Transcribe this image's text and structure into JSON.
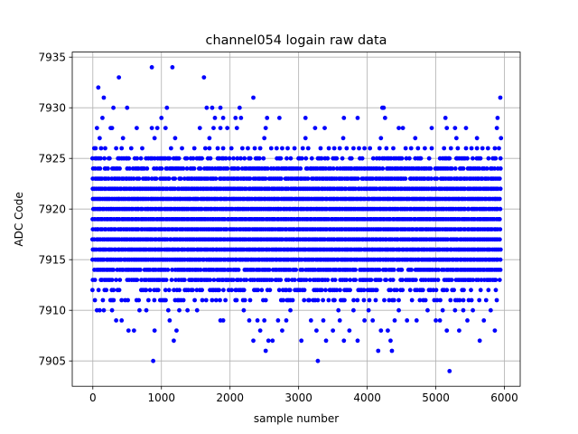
{
  "chart_data": {
    "type": "scatter",
    "title": "channel054 logain raw data",
    "xlabel": "sample number",
    "ylabel": "ADC Code",
    "xlim": [
      -300,
      6230
    ],
    "ylim": [
      7902.5,
      7935.5
    ],
    "xticks": [
      0,
      1000,
      2000,
      3000,
      4000,
      5000,
      6000
    ],
    "yticks": [
      7905,
      7910,
      7915,
      7920,
      7925,
      7930,
      7935
    ],
    "grid": true,
    "marker_color": "#0000ff",
    "series": [
      {
        "values_summary": "dense integer ADC codes 7911-7925 across samples 0-5950, with sparse outliers",
        "bands": [
          {
            "y": 7911,
            "x_ranges": [
              [
                0,
                5950
              ]
            ],
            "density": 0.4
          },
          {
            "y": 7912,
            "x_ranges": [
              [
                0,
                5950
              ]
            ],
            "density": 0.55
          },
          {
            "y": 7913,
            "x_ranges": [
              [
                0,
                5950
              ]
            ],
            "density": 0.75
          },
          {
            "y": 7914,
            "x_ranges": [
              [
                0,
                5950
              ]
            ],
            "density": 0.92
          },
          {
            "y": 7915,
            "x_ranges": [
              [
                0,
                5950
              ]
            ],
            "density": 1.0
          },
          {
            "y": 7916,
            "x_ranges": [
              [
                0,
                5950
              ]
            ],
            "density": 1.0
          },
          {
            "y": 7917,
            "x_ranges": [
              [
                0,
                5950
              ]
            ],
            "density": 1.0
          },
          {
            "y": 7918,
            "x_ranges": [
              [
                0,
                5950
              ]
            ],
            "density": 1.0
          },
          {
            "y": 7919,
            "x_ranges": [
              [
                0,
                5950
              ]
            ],
            "density": 1.0
          },
          {
            "y": 7920,
            "x_ranges": [
              [
                0,
                5950
              ]
            ],
            "density": 1.0
          },
          {
            "y": 7921,
            "x_ranges": [
              [
                0,
                5950
              ]
            ],
            "density": 1.0
          },
          {
            "y": 7922,
            "x_ranges": [
              [
                0,
                5950
              ]
            ],
            "density": 1.0
          },
          {
            "y": 7923,
            "x_ranges": [
              [
                0,
                5950
              ]
            ],
            "density": 0.92
          },
          {
            "y": 7924,
            "x_ranges": [
              [
                0,
                5950
              ]
            ],
            "density": 0.8
          },
          {
            "y": 7925,
            "x_ranges": [
              [
                0,
                5950
              ]
            ],
            "density": 0.6
          }
        ],
        "points": [
          [
            20,
            7926
          ],
          [
            40,
            7926
          ],
          [
            60,
            7928
          ],
          [
            120,
            7926
          ],
          [
            180,
            7926
          ],
          [
            260,
            7928
          ],
          [
            340,
            7926
          ],
          [
            420,
            7926
          ],
          [
            560,
            7926
          ],
          [
            640,
            7928
          ],
          [
            720,
            7926
          ],
          [
            860,
            7928
          ],
          [
            940,
            7928
          ],
          [
            1060,
            7928
          ],
          [
            1140,
            7926
          ],
          [
            1300,
            7926
          ],
          [
            1480,
            7926
          ],
          [
            1560,
            7928
          ],
          [
            1640,
            7926
          ],
          [
            1700,
            7926
          ],
          [
            1760,
            7928
          ],
          [
            1820,
            7926
          ],
          [
            1860,
            7928
          ],
          [
            1900,
            7926
          ],
          [
            1960,
            7928
          ],
          [
            2020,
            7926
          ],
          [
            2100,
            7928
          ],
          [
            2180,
            7926
          ],
          [
            2260,
            7926
          ],
          [
            2360,
            7926
          ],
          [
            2440,
            7926
          ],
          [
            2520,
            7928
          ],
          [
            2600,
            7926
          ],
          [
            2680,
            7926
          ],
          [
            2760,
            7926
          ],
          [
            2840,
            7926
          ],
          [
            2940,
            7926
          ],
          [
            3060,
            7926
          ],
          [
            3140,
            7926
          ],
          [
            3240,
            7928
          ],
          [
            3320,
            7926
          ],
          [
            3380,
            7928
          ],
          [
            3440,
            7926
          ],
          [
            3520,
            7926
          ],
          [
            3600,
            7926
          ],
          [
            3700,
            7926
          ],
          [
            3800,
            7926
          ],
          [
            3880,
            7926
          ],
          [
            3960,
            7926
          ],
          [
            4040,
            7926
          ],
          [
            4180,
            7926
          ],
          [
            4280,
            7926
          ],
          [
            4380,
            7926
          ],
          [
            4460,
            7928
          ],
          [
            4560,
            7926
          ],
          [
            4640,
            7926
          ],
          [
            4740,
            7926
          ],
          [
            4840,
            7926
          ],
          [
            4940,
            7926
          ],
          [
            5120,
            7926
          ],
          [
            5220,
            7926
          ],
          [
            5320,
            7926
          ],
          [
            5440,
            7926
          ],
          [
            5520,
            7926
          ],
          [
            5600,
            7926
          ],
          [
            5680,
            7926
          ],
          [
            5760,
            7926
          ],
          [
            5860,
            7926
          ],
          [
            5920,
            7926
          ],
          [
            100,
            7927
          ],
          [
            440,
            7927
          ],
          [
            900,
            7927
          ],
          [
            1200,
            7927
          ],
          [
            1700,
            7927
          ],
          [
            2500,
            7927
          ],
          [
            3100,
            7927
          ],
          [
            3650,
            7927
          ],
          [
            4200,
            7927
          ],
          [
            4700,
            7927
          ],
          [
            5300,
            7927
          ],
          [
            5600,
            7927
          ],
          [
            5950,
            7927
          ],
          [
            80,
            7932
          ],
          [
            160,
            7931
          ],
          [
            140,
            7929
          ],
          [
            280,
            7928
          ],
          [
            300,
            7930
          ],
          [
            380,
            7933
          ],
          [
            500,
            7930
          ],
          [
            860,
            7934
          ],
          [
            1160,
            7934
          ],
          [
            1000,
            7929
          ],
          [
            1080,
            7930
          ],
          [
            1620,
            7933
          ],
          [
            1660,
            7930
          ],
          [
            1740,
            7930
          ],
          [
            1780,
            7929
          ],
          [
            1860,
            7930
          ],
          [
            1900,
            7929
          ],
          [
            2080,
            7929
          ],
          [
            2140,
            7930
          ],
          [
            2160,
            7929
          ],
          [
            2340,
            7931
          ],
          [
            2540,
            7929
          ],
          [
            2720,
            7929
          ],
          [
            3100,
            7929
          ],
          [
            3660,
            7929
          ],
          [
            3860,
            7929
          ],
          [
            4220,
            7930
          ],
          [
            4240,
            7930
          ],
          [
            4260,
            7929
          ],
          [
            4520,
            7928
          ],
          [
            4940,
            7928
          ],
          [
            5140,
            7929
          ],
          [
            5160,
            7928
          ],
          [
            5280,
            7928
          ],
          [
            5440,
            7928
          ],
          [
            5900,
            7929
          ],
          [
            5940,
            7931
          ],
          [
            5890,
            7928
          ],
          [
            60,
            7910
          ],
          [
            100,
            7910
          ],
          [
            160,
            7910
          ],
          [
            280,
            7910
          ],
          [
            340,
            7909
          ],
          [
            420,
            7909
          ],
          [
            520,
            7908
          ],
          [
            600,
            7908
          ],
          [
            680,
            7910
          ],
          [
            780,
            7910
          ],
          [
            880,
            7905
          ],
          [
            900,
            7908
          ],
          [
            1100,
            7910
          ],
          [
            1120,
            7909
          ],
          [
            1180,
            7907
          ],
          [
            1220,
            7908
          ],
          [
            1260,
            7910
          ],
          [
            1380,
            7910
          ],
          [
            1520,
            7910
          ],
          [
            1860,
            7909
          ],
          [
            1900,
            7909
          ],
          [
            2200,
            7910
          ],
          [
            2280,
            7909
          ],
          [
            2340,
            7907
          ],
          [
            2400,
            7909
          ],
          [
            2440,
            7908
          ],
          [
            2500,
            7909
          ],
          [
            2520,
            7906
          ],
          [
            2560,
            7907
          ],
          [
            2620,
            7907
          ],
          [
            2700,
            7909
          ],
          [
            2760,
            7908
          ],
          [
            2820,
            7909
          ],
          [
            2880,
            7910
          ],
          [
            3040,
            7907
          ],
          [
            3180,
            7909
          ],
          [
            3260,
            7908
          ],
          [
            3280,
            7905
          ],
          [
            3360,
            7909
          ],
          [
            3400,
            7907
          ],
          [
            3500,
            7908
          ],
          [
            3580,
            7910
          ],
          [
            3600,
            7909
          ],
          [
            3660,
            7907
          ],
          [
            3740,
            7908
          ],
          [
            3800,
            7910
          ],
          [
            3860,
            7907
          ],
          [
            3960,
            7909
          ],
          [
            4020,
            7910
          ],
          [
            4080,
            7909
          ],
          [
            4160,
            7906
          ],
          [
            4200,
            7908
          ],
          [
            4300,
            7908
          ],
          [
            4340,
            7907
          ],
          [
            4360,
            7906
          ],
          [
            4400,
            7909
          ],
          [
            4460,
            7910
          ],
          [
            4580,
            7909
          ],
          [
            4720,
            7909
          ],
          [
            4880,
            7910
          ],
          [
            5000,
            7909
          ],
          [
            5060,
            7909
          ],
          [
            5100,
            7910
          ],
          [
            5160,
            7908
          ],
          [
            5200,
            7904
          ],
          [
            5280,
            7910
          ],
          [
            5340,
            7908
          ],
          [
            5400,
            7910
          ],
          [
            5460,
            7909
          ],
          [
            5540,
            7910
          ],
          [
            5640,
            7907
          ],
          [
            5700,
            7909
          ],
          [
            5800,
            7910
          ],
          [
            5860,
            7908
          ]
        ]
      }
    ]
  }
}
